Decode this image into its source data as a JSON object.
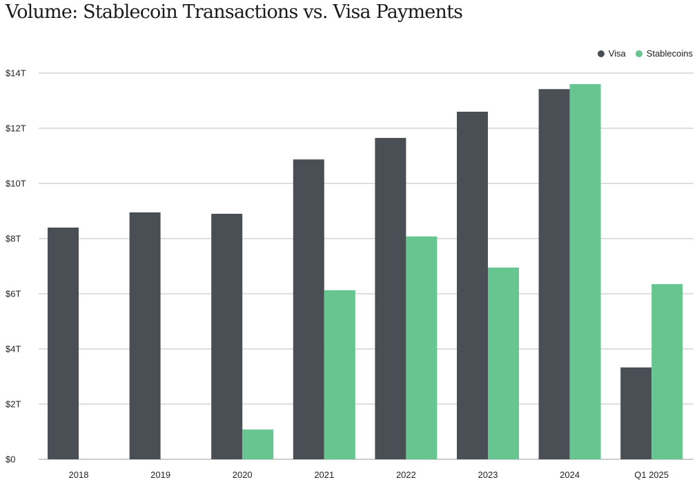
{
  "chart_data": {
    "type": "bar",
    "title": "Volume: Stablecoin Transactions vs. Visa Payments",
    "xlabel": "",
    "ylabel": "",
    "categories": [
      "2018",
      "2019",
      "2020",
      "2021",
      "2022",
      "2023",
      "2024",
      "Q1 2025"
    ],
    "series": [
      {
        "name": "Visa",
        "color": "#4a4f55",
        "values": [
          8.4,
          8.95,
          8.9,
          10.87,
          11.65,
          12.6,
          13.42,
          3.33
        ]
      },
      {
        "name": "Stablecoins",
        "color": "#67c58f",
        "values": [
          0,
          0,
          1.08,
          6.13,
          8.08,
          6.95,
          13.6,
          6.35
        ]
      }
    ],
    "ylim": [
      0,
      14
    ],
    "yticks": [
      0,
      2,
      4,
      6,
      8,
      10,
      12,
      14
    ],
    "ytick_labels": [
      "$0",
      "$2T",
      "$4T",
      "$6T",
      "$8T",
      "$10T",
      "$12T",
      "$14T"
    ],
    "grid": true,
    "legend_position": "top-right"
  }
}
